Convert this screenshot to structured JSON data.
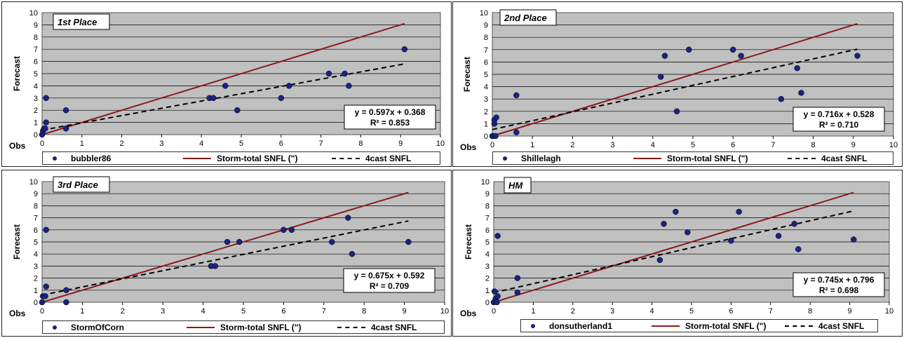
{
  "colors": {
    "plot_bg": "#c0c0c0",
    "point": "#1a237e",
    "storm_line": "#8b1a1a",
    "trend_line": "#000000"
  },
  "chart_data": [
    {
      "type": "scatter",
      "title": "1st Place",
      "xlabel": "Obs",
      "ylabel": "Forecast",
      "xlim": [
        0,
        10
      ],
      "ylim": [
        0,
        10
      ],
      "x_ticks": [
        "0",
        "1",
        "2",
        "3",
        "4",
        "5",
        "6",
        "7",
        "8",
        "9",
        "10"
      ],
      "y_ticks": [
        "0",
        "1",
        "2",
        "3",
        "4",
        "5",
        "6",
        "7",
        "8",
        "9",
        "10"
      ],
      "grid": "horizontal",
      "legend_position": "bottom",
      "series_points_name": "bubbler86",
      "series_storm_name": "Storm-total SNFL (\")",
      "series_trend_name": "4cast SNFL",
      "storm_line": {
        "x": [
          0,
          9.1
        ],
        "y": [
          0,
          9.1
        ]
      },
      "trend_line": {
        "x": [
          0,
          9.1
        ],
        "y": [
          0.368,
          5.8
        ]
      },
      "points": [
        {
          "x": 0,
          "y": 0
        },
        {
          "x": 0.02,
          "y": 0.3
        },
        {
          "x": 0.05,
          "y": 0.5
        },
        {
          "x": 0.08,
          "y": 0.5
        },
        {
          "x": 0.1,
          "y": 1
        },
        {
          "x": 0.1,
          "y": 3
        },
        {
          "x": 0.6,
          "y": 2
        },
        {
          "x": 0.6,
          "y": 0.5
        },
        {
          "x": 4.2,
          "y": 3
        },
        {
          "x": 4.3,
          "y": 3
        },
        {
          "x": 4.6,
          "y": 4
        },
        {
          "x": 4.9,
          "y": 2
        },
        {
          "x": 6,
          "y": 3
        },
        {
          "x": 6.2,
          "y": 4
        },
        {
          "x": 7.2,
          "y": 5
        },
        {
          "x": 7.6,
          "y": 5
        },
        {
          "x": 7.7,
          "y": 4
        },
        {
          "x": 9.1,
          "y": 7
        }
      ],
      "equation": "y = 0.597x + 0.368",
      "r2": "R² = 0.853"
    },
    {
      "type": "scatter",
      "title": "2nd Place",
      "xlabel": "Obs",
      "ylabel": "Forecast",
      "xlim": [
        0,
        10
      ],
      "ylim": [
        0,
        10
      ],
      "x_ticks": [
        "0",
        "1",
        "2",
        "3",
        "4",
        "5",
        "6",
        "7",
        "8",
        "9",
        "10"
      ],
      "y_ticks": [
        "0",
        "1",
        "2",
        "3",
        "4",
        "5",
        "6",
        "7",
        "8",
        "9",
        "10"
      ],
      "grid": "horizontal",
      "legend_position": "bottom",
      "series_points_name": "Shillelagh",
      "series_storm_name": "Storm-total SNFL (\")",
      "series_trend_name": "4cast SNFL",
      "storm_line": {
        "x": [
          0,
          9.1
        ],
        "y": [
          0,
          9.1
        ]
      },
      "trend_line": {
        "x": [
          0,
          9.1
        ],
        "y": [
          0.528,
          7.04
        ]
      },
      "points": [
        {
          "x": 0,
          "y": 0
        },
        {
          "x": 0.02,
          "y": 0
        },
        {
          "x": 0.05,
          "y": 1
        },
        {
          "x": 0.05,
          "y": 1.3
        },
        {
          "x": 0.08,
          "y": 0
        },
        {
          "x": 0.1,
          "y": 1.5
        },
        {
          "x": 0.6,
          "y": 3.3
        },
        {
          "x": 0.6,
          "y": 0.3
        },
        {
          "x": 4.2,
          "y": 4.8
        },
        {
          "x": 4.3,
          "y": 6.5
        },
        {
          "x": 4.6,
          "y": 2
        },
        {
          "x": 4.9,
          "y": 7
        },
        {
          "x": 6,
          "y": 7
        },
        {
          "x": 6.2,
          "y": 6.5
        },
        {
          "x": 7.2,
          "y": 3
        },
        {
          "x": 7.6,
          "y": 5.5
        },
        {
          "x": 7.7,
          "y": 3.5
        },
        {
          "x": 9.1,
          "y": 6.5
        }
      ],
      "equation": "y = 0.716x + 0.528",
      "r2": "R² = 0.710"
    },
    {
      "type": "scatter",
      "title": "3rd Place",
      "xlabel": "Obs",
      "ylabel": "Forecast",
      "xlim": [
        0,
        10
      ],
      "ylim": [
        0,
        10
      ],
      "x_ticks": [
        "0",
        "1",
        "2",
        "3",
        "4",
        "5",
        "6",
        "7",
        "8",
        "9",
        "10"
      ],
      "y_ticks": [
        "0",
        "1",
        "2",
        "3",
        "4",
        "5",
        "6",
        "7",
        "8",
        "9",
        "10"
      ],
      "grid": "horizontal",
      "legend_position": "bottom",
      "series_points_name": "StormOfCorn",
      "series_storm_name": "Storm-total SNFL (\")",
      "series_trend_name": "4cast SNFL",
      "storm_line": {
        "x": [
          0,
          9.1
        ],
        "y": [
          0,
          9.1
        ]
      },
      "trend_line": {
        "x": [
          0,
          9.1
        ],
        "y": [
          0.592,
          6.74
        ]
      },
      "points": [
        {
          "x": 0,
          "y": 0
        },
        {
          "x": 0.02,
          "y": 0.5
        },
        {
          "x": 0.08,
          "y": 0.5
        },
        {
          "x": 0.1,
          "y": 1.3
        },
        {
          "x": 0.1,
          "y": 6
        },
        {
          "x": 0.6,
          "y": 1
        },
        {
          "x": 0.6,
          "y": 0
        },
        {
          "x": 4.2,
          "y": 3
        },
        {
          "x": 4.3,
          "y": 3
        },
        {
          "x": 4.6,
          "y": 5
        },
        {
          "x": 4.9,
          "y": 5
        },
        {
          "x": 6,
          "y": 6
        },
        {
          "x": 6.2,
          "y": 6
        },
        {
          "x": 7.2,
          "y": 5
        },
        {
          "x": 7.6,
          "y": 7
        },
        {
          "x": 7.7,
          "y": 4
        },
        {
          "x": 9.1,
          "y": 5
        }
      ],
      "equation": "y = 0.675x + 0.592",
      "r2": "R² = 0.709"
    },
    {
      "type": "scatter",
      "title": "HM",
      "xlabel": "Obs",
      "ylabel": "Forecast",
      "xlim": [
        0,
        10
      ],
      "ylim": [
        0,
        10
      ],
      "x_ticks": [
        "0",
        "1",
        "2",
        "3",
        "4",
        "5",
        "6",
        "7",
        "8",
        "9",
        "10"
      ],
      "y_ticks": [
        "0",
        "1",
        "2",
        "3",
        "4",
        "5",
        "6",
        "7",
        "8",
        "9",
        "10"
      ],
      "grid": "horizontal",
      "legend_position": "bottom",
      "series_points_name": "donsutherland1",
      "series_storm_name": "Storm-total SNFL (\")",
      "series_trend_name": "4cast SNFL",
      "storm_line": {
        "x": [
          0,
          9.1
        ],
        "y": [
          0,
          9.1
        ]
      },
      "trend_line": {
        "x": [
          0,
          9.1
        ],
        "y": [
          0.796,
          7.576
        ]
      },
      "points": [
        {
          "x": 0,
          "y": 0
        },
        {
          "x": 0.02,
          "y": 0.9
        },
        {
          "x": 0.05,
          "y": 0.3
        },
        {
          "x": 0.08,
          "y": 0
        },
        {
          "x": 0.1,
          "y": 0.5
        },
        {
          "x": 0.1,
          "y": 5.5
        },
        {
          "x": 0.6,
          "y": 2
        },
        {
          "x": 0.6,
          "y": 0.8
        },
        {
          "x": 4.2,
          "y": 3.5
        },
        {
          "x": 4.3,
          "y": 6.5
        },
        {
          "x": 4.6,
          "y": 7.5
        },
        {
          "x": 4.9,
          "y": 5.8
        },
        {
          "x": 6,
          "y": 5.1
        },
        {
          "x": 6.2,
          "y": 7.5
        },
        {
          "x": 7.2,
          "y": 5.5
        },
        {
          "x": 7.6,
          "y": 6.5
        },
        {
          "x": 7.7,
          "y": 4.4
        },
        {
          "x": 9.1,
          "y": 5.2
        }
      ],
      "equation": "y = 0.745x + 0.796",
      "r2": "R² = 0.698"
    }
  ]
}
